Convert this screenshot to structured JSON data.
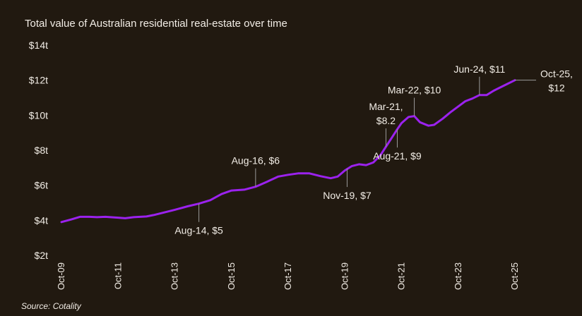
{
  "chart_data": {
    "type": "line",
    "title": "Total value of Australian residential real-estate over time",
    "source": "Source: Cotality",
    "xlabel": "",
    "ylabel": "",
    "ylim": [
      2,
      14
    ],
    "y_ticks": [
      {
        "value": 14,
        "label": "$14t"
      },
      {
        "value": 12,
        "label": "$12t"
      },
      {
        "value": 10,
        "label": "$10t"
      },
      {
        "value": 8,
        "label": "$8t"
      },
      {
        "value": 6,
        "label": "$6t"
      },
      {
        "value": 4,
        "label": "$4t"
      },
      {
        "value": 2,
        "label": "$2t"
      }
    ],
    "x_ticks": [
      {
        "value": 2009.75,
        "label": "Oct-09"
      },
      {
        "value": 2011.75,
        "label": "Oct-11"
      },
      {
        "value": 2013.75,
        "label": "Oct-13"
      },
      {
        "value": 2015.75,
        "label": "Oct-15"
      },
      {
        "value": 2017.75,
        "label": "Oct-17"
      },
      {
        "value": 2019.75,
        "label": "Oct-19"
      },
      {
        "value": 2021.75,
        "label": "Oct-21"
      },
      {
        "value": 2023.75,
        "label": "Oct-23"
      },
      {
        "value": 2025.75,
        "label": "Oct-25"
      }
    ],
    "series": [
      {
        "name": "Total value",
        "color": "#9b22ee",
        "points": [
          [
            2009.75,
            3.9
          ],
          [
            2010.1,
            4.05
          ],
          [
            2010.4,
            4.2
          ],
          [
            2010.75,
            4.2
          ],
          [
            2011.0,
            4.18
          ],
          [
            2011.3,
            4.2
          ],
          [
            2011.75,
            4.15
          ],
          [
            2012.0,
            4.12
          ],
          [
            2012.3,
            4.18
          ],
          [
            2012.75,
            4.22
          ],
          [
            2013.0,
            4.3
          ],
          [
            2013.5,
            4.5
          ],
          [
            2013.75,
            4.6
          ],
          [
            2014.2,
            4.8
          ],
          [
            2014.6,
            4.95
          ],
          [
            2015.0,
            5.15
          ],
          [
            2015.4,
            5.5
          ],
          [
            2015.75,
            5.7
          ],
          [
            2016.2,
            5.75
          ],
          [
            2016.6,
            5.92
          ],
          [
            2017.0,
            6.2
          ],
          [
            2017.4,
            6.5
          ],
          [
            2017.75,
            6.6
          ],
          [
            2018.1,
            6.68
          ],
          [
            2018.5,
            6.68
          ],
          [
            2018.9,
            6.52
          ],
          [
            2019.25,
            6.4
          ],
          [
            2019.5,
            6.5
          ],
          [
            2019.75,
            6.85
          ],
          [
            2020.0,
            7.1
          ],
          [
            2020.25,
            7.2
          ],
          [
            2020.5,
            7.15
          ],
          [
            2020.75,
            7.3
          ],
          [
            2021.0,
            7.7
          ],
          [
            2021.2,
            8.2
          ],
          [
            2021.4,
            8.7
          ],
          [
            2021.6,
            9.2
          ],
          [
            2021.75,
            9.55
          ],
          [
            2022.0,
            9.9
          ],
          [
            2022.2,
            9.95
          ],
          [
            2022.4,
            9.6
          ],
          [
            2022.7,
            9.4
          ],
          [
            2022.9,
            9.45
          ],
          [
            2023.2,
            9.8
          ],
          [
            2023.5,
            10.2
          ],
          [
            2023.75,
            10.5
          ],
          [
            2024.0,
            10.8
          ],
          [
            2024.25,
            10.95
          ],
          [
            2024.5,
            11.15
          ],
          [
            2024.75,
            11.15
          ],
          [
            2025.0,
            11.4
          ],
          [
            2025.25,
            11.6
          ],
          [
            2025.5,
            11.8
          ],
          [
            2025.75,
            12.0
          ]
        ]
      }
    ],
    "annotations": [
      {
        "lines": [
          "Aug-14, $5"
        ],
        "x": 2014.6,
        "y": 4.95,
        "side": "below"
      },
      {
        "lines": [
          "Aug-16, $6"
        ],
        "x": 2016.6,
        "y": 5.92,
        "side": "above"
      },
      {
        "lines": [
          "Nov-19, $7"
        ],
        "x": 2019.83,
        "y": 6.95,
        "side": "below"
      },
      {
        "lines": [
          "Mar-21,",
          "$8.2"
        ],
        "x": 2021.2,
        "y": 8.2,
        "side": "above"
      },
      {
        "lines": [
          "Aug-21, $9"
        ],
        "x": 2021.6,
        "y": 9.2,
        "side": "below"
      },
      {
        "lines": [
          "Mar-22, $10"
        ],
        "x": 2022.2,
        "y": 9.95,
        "side": "above"
      },
      {
        "lines": [
          "Jun-24, $11"
        ],
        "x": 2024.5,
        "y": 11.15,
        "side": "above"
      },
      {
        "lines": [
          "Oct-25,",
          "$12"
        ],
        "x": 2025.75,
        "y": 12.0,
        "side": "right"
      }
    ],
    "grid": false,
    "legend": "none"
  }
}
